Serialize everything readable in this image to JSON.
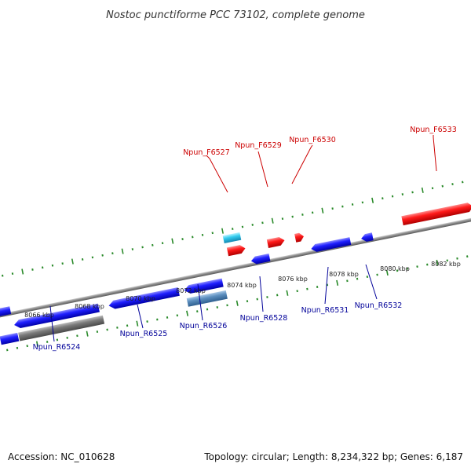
{
  "header": {
    "title": "Nostoc punctiforme PCC 73102, complete genome"
  },
  "footer": {
    "accession": "Accession: NC_010628",
    "summary": "Topology: circular; Length: 8,234,322 bp; Genes: 6,187"
  },
  "colors": {
    "forward_gene": "#ee1111",
    "reverse_gene": "#1a1aee",
    "forward_rna": "#33ccee",
    "reverse_rna": "#5c8fbf",
    "pseudogene": "#777777",
    "backbone": "#888888",
    "tick": "#2a8a2a",
    "forward_label": "#cc0000",
    "reverse_label": "#000099"
  },
  "scale": {
    "tick_labels": [
      "8066 kbp",
      "8068 kbp",
      "8070 kbp",
      "8072 kbp",
      "8074 kbp",
      "8076 kbp",
      "8078 kbp",
      "8080 kbp",
      "8082 kbp"
    ]
  },
  "genes": {
    "forward_labeled": [
      {
        "name": "Npun_F6527"
      },
      {
        "name": "Npun_F6529"
      },
      {
        "name": "Npun_F6530"
      },
      {
        "name": "Npun_F6533"
      }
    ],
    "reverse_labeled": [
      {
        "name": "Npun_R6524"
      },
      {
        "name": "Npun_R6525"
      },
      {
        "name": "Npun_R6526"
      },
      {
        "name": "Npun_R6528"
      },
      {
        "name": "Npun_R6531"
      },
      {
        "name": "Npun_R6532"
      }
    ]
  }
}
